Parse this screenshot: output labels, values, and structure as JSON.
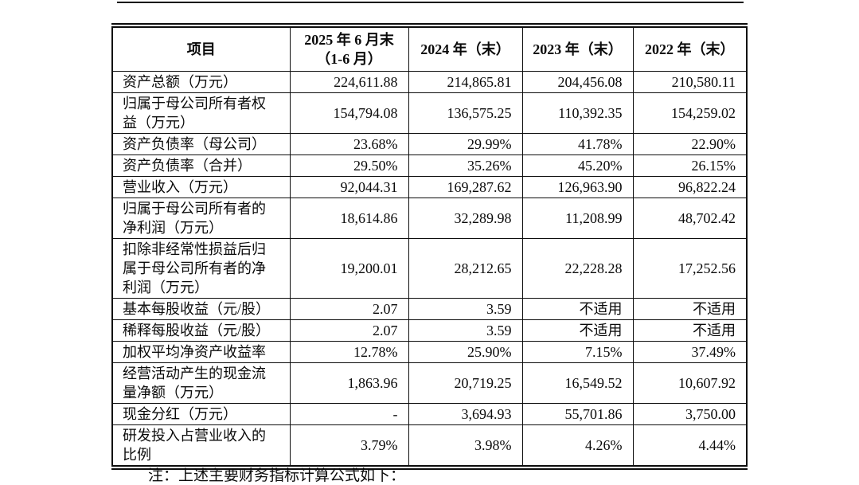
{
  "table": {
    "columns": [
      "项目",
      "2025 年 6 月末\n（1-6 月）",
      "2024 年（末）",
      "2023 年（末）",
      "2022 年（末）"
    ],
    "rows": [
      {
        "item": "资产总额（万元）",
        "values": [
          "224,611.88",
          "214,865.81",
          "204,456.08",
          "210,580.11"
        ]
      },
      {
        "item": "归属于母公司所有者权益（万元）",
        "values": [
          "154,794.08",
          "136,575.25",
          "110,392.35",
          "154,259.02"
        ]
      },
      {
        "item": "资产负债率（母公司）",
        "values": [
          "23.68%",
          "29.99%",
          "41.78%",
          "22.90%"
        ]
      },
      {
        "item": "资产负债率（合并）",
        "values": [
          "29.50%",
          "35.26%",
          "45.20%",
          "26.15%"
        ]
      },
      {
        "item": "营业收入（万元）",
        "values": [
          "92,044.31",
          "169,287.62",
          "126,963.90",
          "96,822.24"
        ]
      },
      {
        "item": "归属于母公司所有者的净利润（万元）",
        "values": [
          "18,614.86",
          "32,289.98",
          "11,208.99",
          "48,702.42"
        ]
      },
      {
        "item": "扣除非经常性损益后归属于母公司所有者的净利润（万元）",
        "values": [
          "19,200.01",
          "28,212.65",
          "22,228.28",
          "17,252.56"
        ]
      },
      {
        "item": "基本每股收益（元/股）",
        "values": [
          "2.07",
          "3.59",
          "不适用",
          "不适用"
        ]
      },
      {
        "item": "稀释每股收益（元/股）",
        "values": [
          "2.07",
          "3.59",
          "不适用",
          "不适用"
        ]
      },
      {
        "item": "加权平均净资产收益率",
        "values": [
          "12.78%",
          "25.90%",
          "7.15%",
          "37.49%"
        ]
      },
      {
        "item": "经营活动产生的现金流量净额（万元）",
        "values": [
          "1,863.96",
          "20,719.25",
          "16,549.52",
          "10,607.92"
        ]
      },
      {
        "item": "现金分红（万元）",
        "values": [
          "-",
          "3,694.93",
          "55,701.86",
          "3,750.00"
        ]
      },
      {
        "item": "研发投入占营业收入的比例",
        "values": [
          "3.79%",
          "3.98%",
          "4.26%",
          "4.44%"
        ]
      }
    ]
  },
  "note": {
    "text": "注：上述主要财务指标计算公式如下："
  },
  "colors": {
    "ink": "#0d0d0d",
    "paper": "#ffffff"
  }
}
